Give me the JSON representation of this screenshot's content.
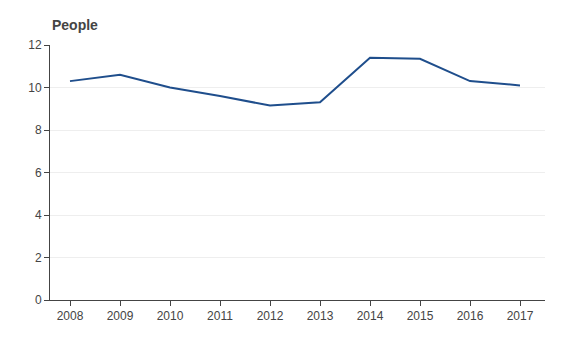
{
  "chart_data": {
    "type": "line",
    "ylabel": "People",
    "x": [
      2008,
      2009,
      2010,
      2011,
      2012,
      2013,
      2014,
      2015,
      2016,
      2017
    ],
    "values": [
      10.3,
      10.6,
      10.0,
      9.6,
      9.15,
      9.3,
      11.4,
      11.35,
      10.3,
      10.1
    ],
    "color": "#1f4e8c",
    "xlim": [
      2007.6,
      2017.5
    ],
    "xticks": [
      2008,
      2009,
      2010,
      2011,
      2012,
      2013,
      2014,
      2015,
      2016,
      2017
    ],
    "ylim": [
      0,
      12
    ],
    "yticks": [
      0,
      2,
      4,
      6,
      8,
      10,
      12
    ],
    "grid": "y"
  }
}
